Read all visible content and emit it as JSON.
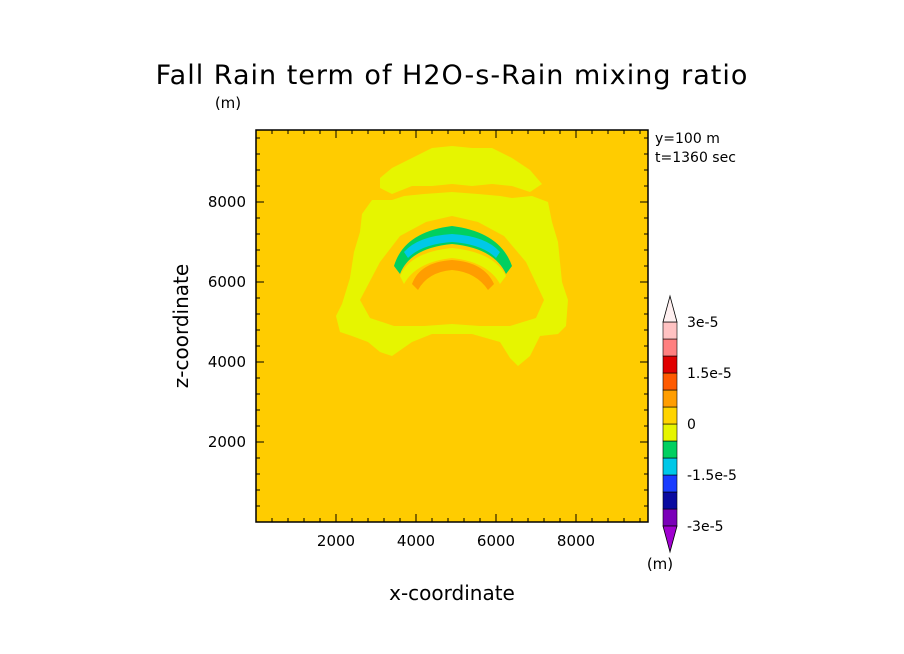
{
  "chart_data": {
    "type": "contour",
    "title": "Fall Rain term of H2O-s-Rain mixing ratio",
    "units_top": "(m)",
    "units_colorbar": "(m)",
    "xlabel": "x-coordinate",
    "ylabel": "z-coordinate",
    "xlim": [
      0,
      9800
    ],
    "ylim": [
      0,
      9800
    ],
    "x_ticks": [
      2000,
      4000,
      6000,
      8000
    ],
    "y_ticks": [
      2000,
      4000,
      6000,
      8000
    ],
    "annotation": [
      "y=100 m",
      "t=1360 sec"
    ],
    "colorbar": {
      "levels": [
        -3e-05,
        -2.5e-05,
        -2e-05,
        -1.5e-05,
        -1e-05,
        -5e-06,
        0,
        5e-06,
        1e-05,
        1.5e-05,
        2e-05,
        2.5e-05,
        3e-05
      ],
      "labels": [
        {
          "text": "3e-5",
          "value": 3e-05
        },
        {
          "text": "1.5e-5",
          "value": 1.5e-05
        },
        {
          "text": "0",
          "value": 0
        },
        {
          "text": "-1.5e-5",
          "value": -1.5e-05
        },
        {
          "text": "-3e-5",
          "value": -3e-05
        }
      ],
      "colors_bottom_to_top": [
        "#7a00b8",
        "#0a0aa0",
        "#1a3cff",
        "#00c8e8",
        "#00d060",
        "#e6f500",
        "#ffd400",
        "#ff9d00",
        "#ff5a00",
        "#e00000",
        "#ff8080",
        "#ffc2c2"
      ],
      "over_color": "#fff0f0",
      "under_color": "#a000d0"
    },
    "background_color": "#ffcc00",
    "fields": [
      {
        "name": "outer-yellow",
        "color": "#e6f500"
      },
      {
        "name": "inner-band-green",
        "color": "#00d060"
      },
      {
        "name": "inner-band-cyan",
        "color": "#00c8e8"
      },
      {
        "name": "core-orange",
        "color": "#ff9d00"
      }
    ]
  }
}
